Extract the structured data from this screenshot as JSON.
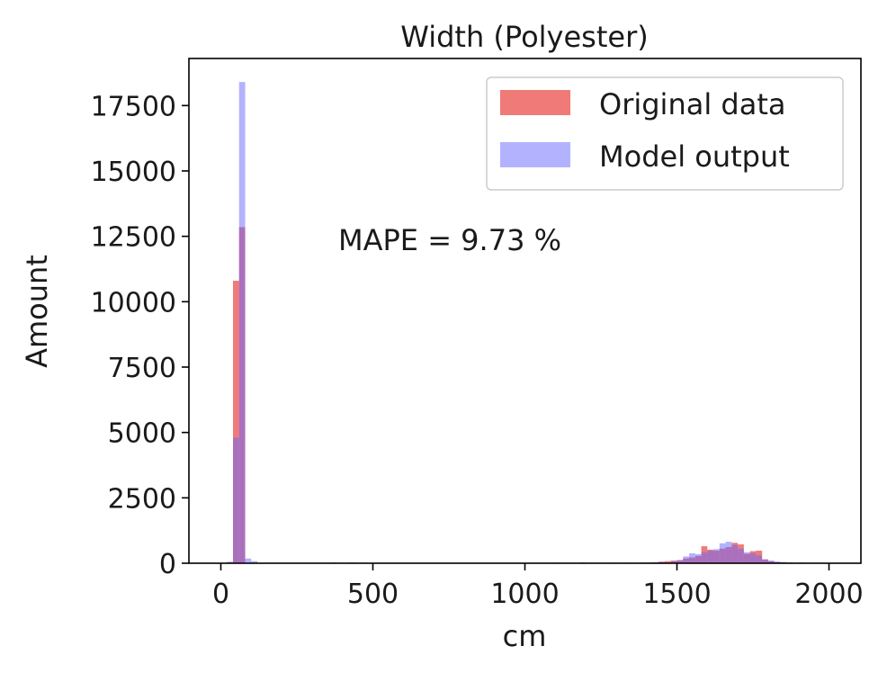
{
  "chart_data": {
    "type": "bar",
    "title": "Width (Polyester)",
    "xlabel": "cm",
    "ylabel": "Amount",
    "xlim": [
      -105,
      2105
    ],
    "ylim": [
      0,
      19300
    ],
    "x_ticks": [
      0,
      500,
      1000,
      1500,
      2000
    ],
    "y_ticks": [
      0,
      2500,
      5000,
      7500,
      10000,
      12500,
      15000,
      17500
    ],
    "x_tick_labels": [
      "0",
      "500",
      "1000",
      "1500",
      "2000"
    ],
    "y_tick_labels": [
      "0",
      "2500",
      "5000",
      "7500",
      "10000",
      "12500",
      "15000",
      "17500"
    ],
    "grid": false,
    "legend_position": "top-right",
    "annotation": "MAPE = 9.73 %",
    "bin_width": 20,
    "series": [
      {
        "name": "Original data",
        "color": "#e8413f",
        "opacity": 0.7,
        "bins": [
          [
            40,
            10800
          ],
          [
            60,
            12850
          ],
          [
            1100,
            20
          ],
          [
            1180,
            25
          ],
          [
            1280,
            20
          ],
          [
            1400,
            30
          ],
          [
            1420,
            40
          ],
          [
            1440,
            60
          ],
          [
            1460,
            80
          ],
          [
            1480,
            100
          ],
          [
            1500,
            120
          ],
          [
            1520,
            180
          ],
          [
            1540,
            220
          ],
          [
            1560,
            280
          ],
          [
            1580,
            650
          ],
          [
            1600,
            520
          ],
          [
            1620,
            480
          ],
          [
            1640,
            560
          ],
          [
            1660,
            620
          ],
          [
            1680,
            780
          ],
          [
            1700,
            720
          ],
          [
            1720,
            360
          ],
          [
            1740,
            460
          ],
          [
            1760,
            480
          ],
          [
            1780,
            150
          ],
          [
            1800,
            80
          ],
          [
            1820,
            50
          ],
          [
            1840,
            40
          ],
          [
            1860,
            30
          ],
          [
            1900,
            25
          ]
        ]
      },
      {
        "name": "Model output",
        "color": "#6666ff",
        "opacity": 0.5,
        "bins": [
          [
            20,
            60
          ],
          [
            40,
            4800
          ],
          [
            60,
            18400
          ],
          [
            80,
            180
          ],
          [
            100,
            80
          ],
          [
            360,
            30
          ],
          [
            420,
            30
          ],
          [
            1180,
            20
          ],
          [
            1240,
            20
          ],
          [
            1320,
            25
          ],
          [
            1380,
            30
          ],
          [
            1440,
            50
          ],
          [
            1480,
            80
          ],
          [
            1500,
            120
          ],
          [
            1520,
            260
          ],
          [
            1540,
            380
          ],
          [
            1560,
            350
          ],
          [
            1580,
            420
          ],
          [
            1600,
            480
          ],
          [
            1620,
            540
          ],
          [
            1640,
            760
          ],
          [
            1660,
            820
          ],
          [
            1680,
            700
          ],
          [
            1700,
            560
          ],
          [
            1720,
            420
          ],
          [
            1740,
            380
          ],
          [
            1760,
            300
          ],
          [
            1780,
            140
          ],
          [
            1800,
            100
          ],
          [
            1820,
            60
          ],
          [
            1840,
            40
          ],
          [
            1880,
            20
          ]
        ]
      }
    ]
  }
}
